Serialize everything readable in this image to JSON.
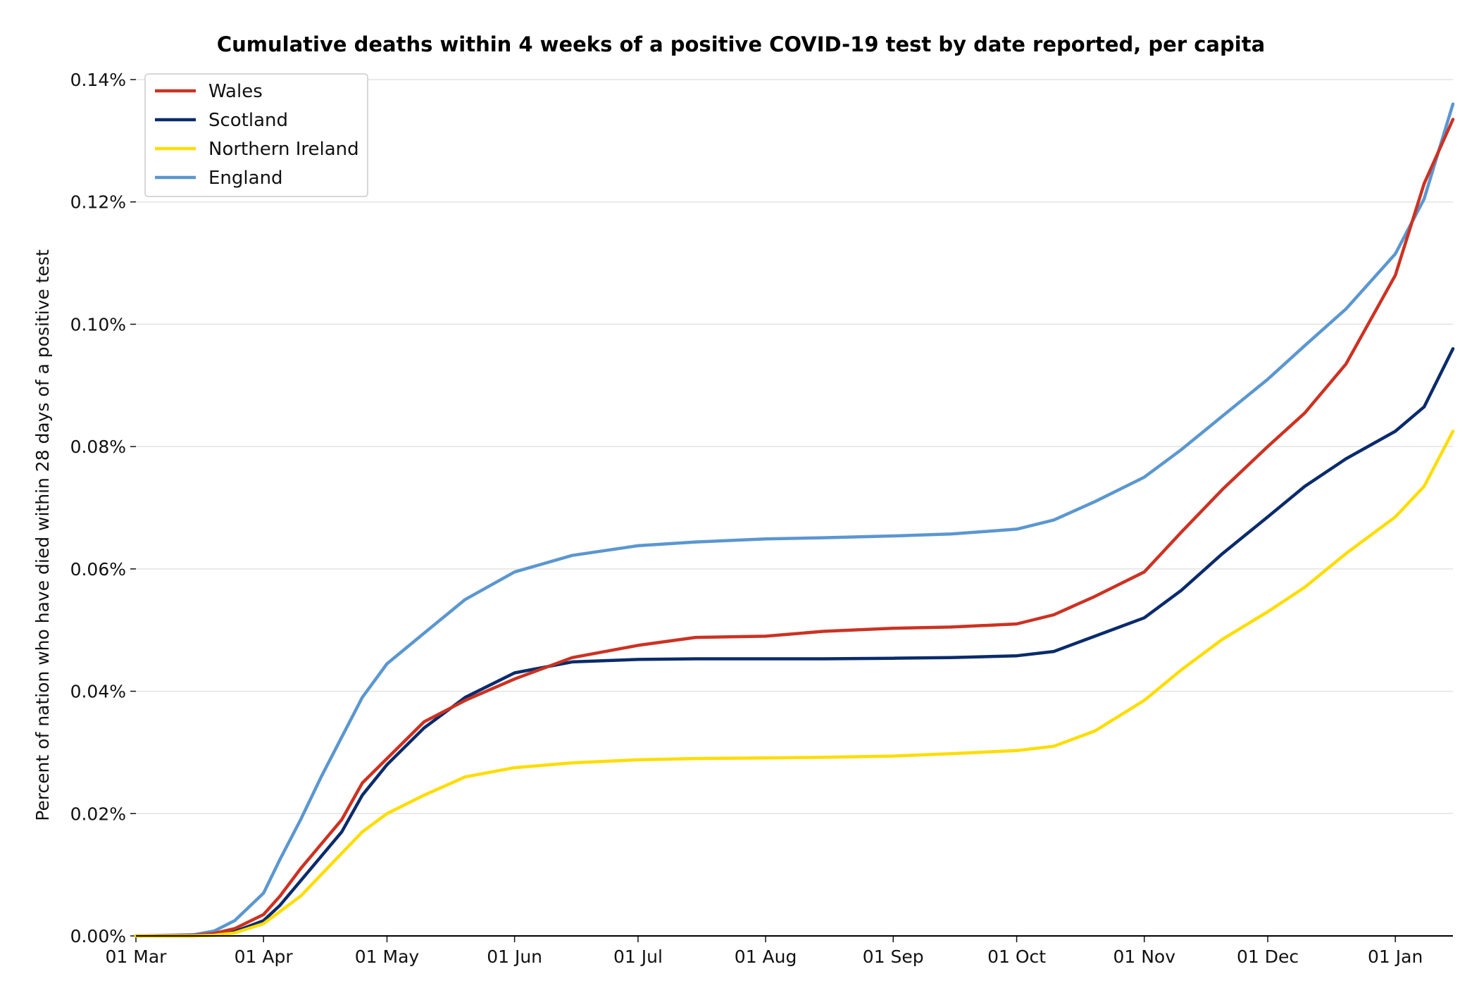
{
  "chart_data": {
    "type": "line",
    "title": "Cumulative deaths within 4 weeks of a positive COVID-19 test by date reported, per capita",
    "xlabel": "",
    "ylabel": "Percent of nation who have died within 28 days of a positive test",
    "x_ticks": [
      "01 Mar",
      "01 Apr",
      "01 May",
      "01 Jun",
      "01 Jul",
      "01 Aug",
      "01 Sep",
      "01 Oct",
      "01 Nov",
      "01 Dec",
      "01 Jan"
    ],
    "y_ticks": [
      "0.00%",
      "0.02%",
      "0.04%",
      "0.06%",
      "0.08%",
      "0.10%",
      "0.12%",
      "0.14%"
    ],
    "xlim": [
      "2020-03-01",
      "2021-01-15"
    ],
    "ylim": [
      0,
      0.14
    ],
    "grid": "horizontal",
    "legend": "top-left",
    "x": [
      "2020-03-01",
      "2020-03-15",
      "2020-03-20",
      "2020-03-25",
      "2020-04-01",
      "2020-04-05",
      "2020-04-10",
      "2020-04-15",
      "2020-04-20",
      "2020-04-25",
      "2020-05-01",
      "2020-05-10",
      "2020-05-20",
      "2020-06-01",
      "2020-06-15",
      "2020-07-01",
      "2020-07-15",
      "2020-08-01",
      "2020-08-15",
      "2020-09-01",
      "2020-09-15",
      "2020-10-01",
      "2020-10-10",
      "2020-10-20",
      "2020-11-01",
      "2020-11-10",
      "2020-11-20",
      "2020-12-01",
      "2020-12-10",
      "2020-12-20",
      "2021-01-01",
      "2021-01-08",
      "2021-01-15"
    ],
    "series": [
      {
        "name": "Wales",
        "color": "#cc3222",
        "values": [
          0,
          0.0001,
          0.0004,
          0.0012,
          0.0035,
          0.0065,
          0.011,
          0.015,
          0.019,
          0.025,
          0.029,
          0.035,
          0.0385,
          0.042,
          0.0455,
          0.0475,
          0.0488,
          0.049,
          0.0498,
          0.0503,
          0.0505,
          0.051,
          0.0525,
          0.0555,
          0.0595,
          0.066,
          0.073,
          0.08,
          0.0855,
          0.0935,
          0.108,
          0.123,
          0.1335
        ]
      },
      {
        "name": "Scotland",
        "color": "#0a2b6b",
        "values": [
          0,
          0,
          0.0002,
          0.0007,
          0.0025,
          0.005,
          0.009,
          0.013,
          0.017,
          0.023,
          0.028,
          0.034,
          0.039,
          0.043,
          0.0448,
          0.0452,
          0.0453,
          0.0453,
          0.0453,
          0.0454,
          0.0455,
          0.0458,
          0.0465,
          0.049,
          0.052,
          0.0565,
          0.0625,
          0.0685,
          0.0735,
          0.078,
          0.0825,
          0.0865,
          0.096
        ]
      },
      {
        "name": "Northern Ireland",
        "color": "#ffdd00",
        "values": [
          0,
          0,
          0.0001,
          0.0005,
          0.002,
          0.004,
          0.0065,
          0.01,
          0.0135,
          0.017,
          0.02,
          0.023,
          0.026,
          0.0275,
          0.0283,
          0.0288,
          0.029,
          0.0291,
          0.0292,
          0.0294,
          0.0298,
          0.0303,
          0.031,
          0.0335,
          0.0385,
          0.0435,
          0.0485,
          0.053,
          0.057,
          0.0625,
          0.0685,
          0.0735,
          0.0825
        ]
      },
      {
        "name": "England",
        "color": "#5b97d0",
        "values": [
          0,
          0.0002,
          0.0008,
          0.0025,
          0.007,
          0.0125,
          0.019,
          0.026,
          0.0325,
          0.039,
          0.0445,
          0.0495,
          0.055,
          0.0595,
          0.0622,
          0.0638,
          0.0644,
          0.0649,
          0.0651,
          0.0654,
          0.0657,
          0.0665,
          0.068,
          0.071,
          0.075,
          0.0795,
          0.085,
          0.091,
          0.0965,
          0.1025,
          0.1115,
          0.1205,
          0.136
        ]
      }
    ]
  }
}
